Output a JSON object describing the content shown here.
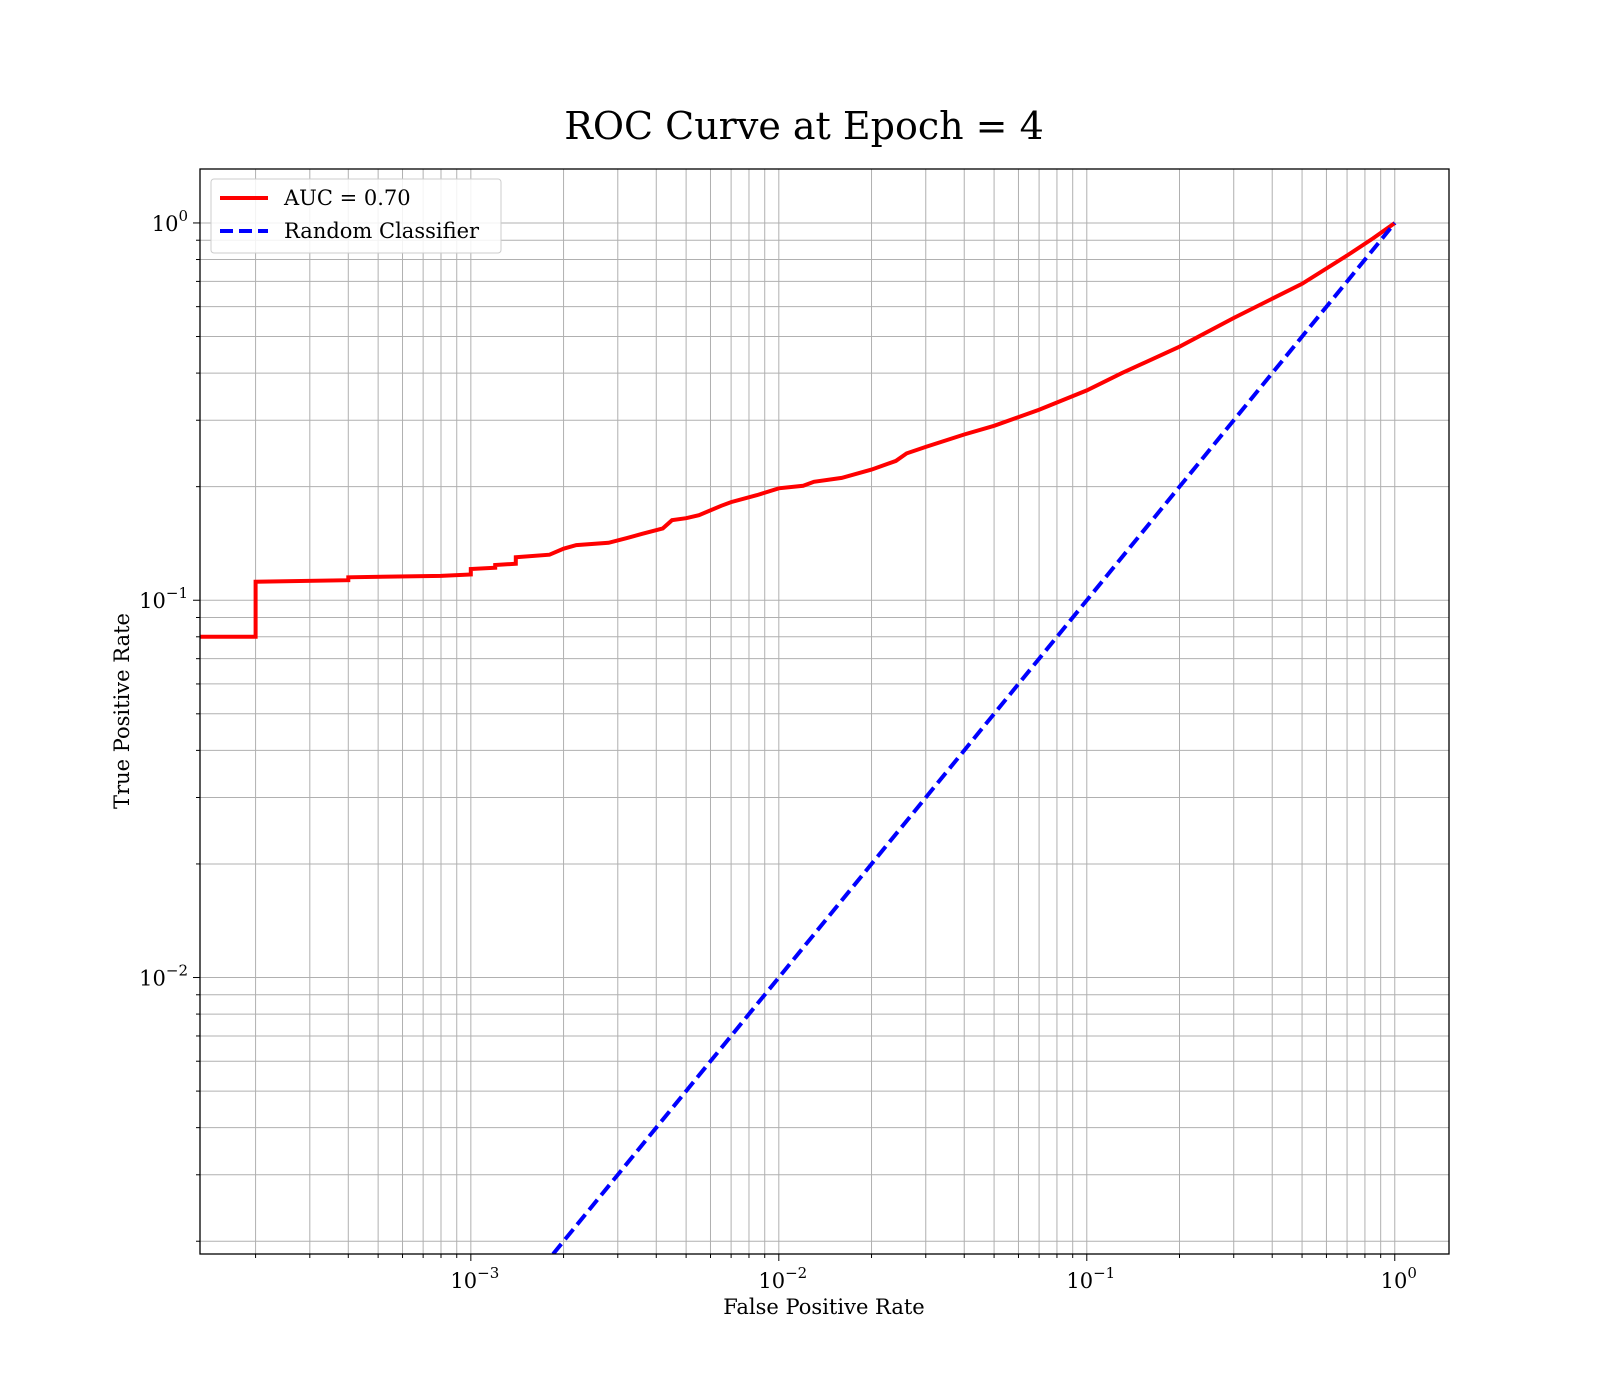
{
  "chart_data": {
    "type": "line",
    "title": "ROC Curve at Epoch = 4",
    "xlabel": "False Positive Rate",
    "ylabel": "True Positive Rate",
    "xscale": "log",
    "yscale": "log",
    "xlim": [
      0.000132,
      1.5
    ],
    "ylim": [
      0.00185,
      1.39
    ],
    "grid": true,
    "legend_position": "top-left",
    "x_ticks": [
      {
        "base": "10",
        "exp": "−3",
        "value": 0.001
      },
      {
        "base": "10",
        "exp": "−2",
        "value": 0.01
      },
      {
        "base": "10",
        "exp": "−1",
        "value": 0.1
      },
      {
        "base": "10",
        "exp": "0",
        "value": 1
      }
    ],
    "y_ticks": [
      {
        "base": "10",
        "exp": "−2",
        "value": 0.01
      },
      {
        "base": "10",
        "exp": "−1",
        "value": 0.1
      },
      {
        "base": "10",
        "exp": "0",
        "value": 1
      }
    ],
    "series": [
      {
        "name": "AUC = 0.70",
        "color": "#ff0000",
        "style": "solid",
        "points": [
          [
            0.000132,
            0.08
          ],
          [
            0.0002,
            0.08
          ],
          [
            0.0002,
            0.112
          ],
          [
            0.0004,
            0.113
          ],
          [
            0.0004,
            0.115
          ],
          [
            0.0008,
            0.116
          ],
          [
            0.001,
            0.117
          ],
          [
            0.001,
            0.121
          ],
          [
            0.0012,
            0.122
          ],
          [
            0.0012,
            0.124
          ],
          [
            0.0014,
            0.125
          ],
          [
            0.0014,
            0.13
          ],
          [
            0.0018,
            0.132
          ],
          [
            0.002,
            0.137
          ],
          [
            0.0022,
            0.14
          ],
          [
            0.0028,
            0.142
          ],
          [
            0.0032,
            0.146
          ],
          [
            0.0036,
            0.15
          ],
          [
            0.0042,
            0.155
          ],
          [
            0.0045,
            0.163
          ],
          [
            0.005,
            0.165
          ],
          [
            0.0055,
            0.168
          ],
          [
            0.0065,
            0.178
          ],
          [
            0.007,
            0.182
          ],
          [
            0.0085,
            0.19
          ],
          [
            0.01,
            0.198
          ],
          [
            0.012,
            0.201
          ],
          [
            0.013,
            0.206
          ],
          [
            0.016,
            0.211
          ],
          [
            0.02,
            0.222
          ],
          [
            0.024,
            0.234
          ],
          [
            0.026,
            0.245
          ],
          [
            0.03,
            0.255
          ],
          [
            0.04,
            0.275
          ],
          [
            0.05,
            0.29
          ],
          [
            0.07,
            0.32
          ],
          [
            0.1,
            0.36
          ],
          [
            0.13,
            0.4
          ],
          [
            0.2,
            0.47
          ],
          [
            0.3,
            0.56
          ],
          [
            0.4,
            0.63
          ],
          [
            0.5,
            0.69
          ],
          [
            0.7,
            0.82
          ],
          [
            0.85,
            0.91
          ],
          [
            1.0,
            1.0
          ]
        ]
      },
      {
        "name": "Random Classifier",
        "color": "#0000ff",
        "style": "dashed",
        "points": [
          [
            0.00185,
            0.00185
          ],
          [
            1.0,
            1.0
          ]
        ]
      }
    ]
  }
}
